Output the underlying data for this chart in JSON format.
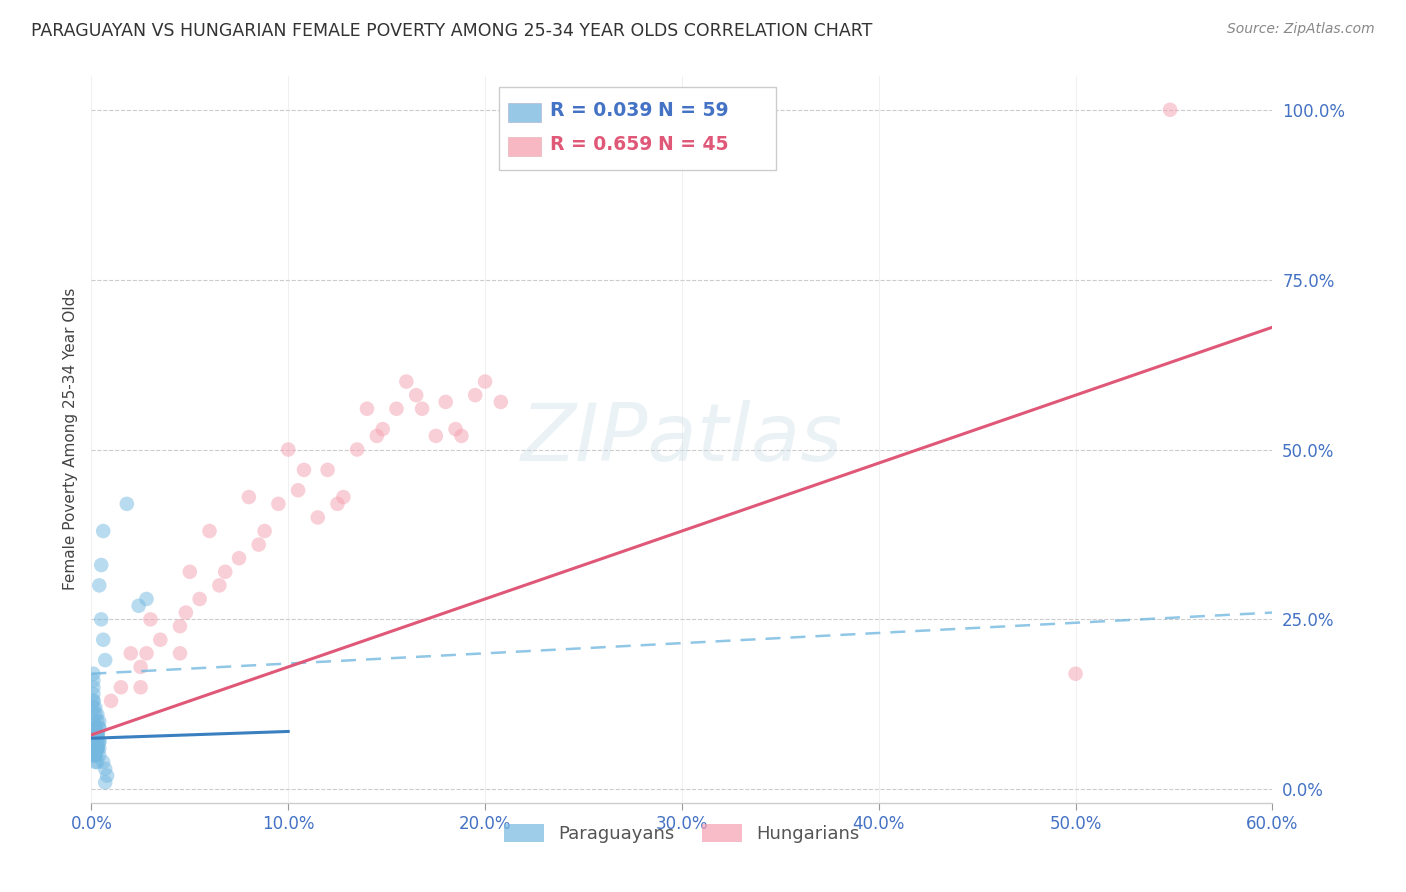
{
  "title": "PARAGUAYAN VS HUNGARIAN FEMALE POVERTY AMONG 25-34 YEAR OLDS CORRELATION CHART",
  "source": "Source: ZipAtlas.com",
  "ylabel": "Female Poverty Among 25-34 Year Olds",
  "legend_line1": "R = 0.039   N = 59",
  "legend_line2": "R = 0.659   N = 45",
  "legend_line1_r": "R = 0.039",
  "legend_line1_n": "N = 59",
  "legend_line2_r": "R = 0.659",
  "legend_line2_n": "N = 45",
  "xlim": [
    0.0,
    0.6
  ],
  "ylim": [
    -0.02,
    1.05
  ],
  "xticks": [
    0.0,
    0.1,
    0.2,
    0.3,
    0.4,
    0.5,
    0.6
  ],
  "yticks": [
    0.0,
    0.25,
    0.5,
    0.75,
    1.0
  ],
  "ytick_labels": [
    "0.0%",
    "25.0%",
    "50.0%",
    "75.0%",
    "100.0%"
  ],
  "xtick_labels": [
    "0.0%",
    "10.0%",
    "20.0%",
    "30.0%",
    "40.0%",
    "50.0%",
    "60.0%"
  ],
  "color_paraguayan": "#74b8e0",
  "color_hungarian": "#f5a0b0",
  "color_trend_paraguayan_solid": "#3a80c0",
  "color_trend_paraguayan_dash": "#74b8e0",
  "color_trend_hungarian": "#e05878",
  "background_color": "#ffffff",
  "par_x": [
    0.002,
    0.003,
    0.001,
    0.002,
    0.003,
    0.004,
    0.001,
    0.002,
    0.003,
    0.001,
    0.002,
    0.003,
    0.004,
    0.002,
    0.001,
    0.003,
    0.002,
    0.004,
    0.003,
    0.002,
    0.001,
    0.002,
    0.003,
    0.001,
    0.002,
    0.004,
    0.003,
    0.002,
    0.001,
    0.003,
    0.002,
    0.004,
    0.003,
    0.001,
    0.002,
    0.003,
    0.004,
    0.002,
    0.001,
    0.003,
    0.002,
    0.003,
    0.004,
    0.001,
    0.002,
    0.003,
    0.024,
    0.028,
    0.018,
    0.006,
    0.007,
    0.008,
    0.005,
    0.006,
    0.007,
    0.004,
    0.005,
    0.006,
    0.007
  ],
  "par_y": [
    0.05,
    0.04,
    0.06,
    0.07,
    0.08,
    0.09,
    0.1,
    0.11,
    0.06,
    0.05,
    0.12,
    0.08,
    0.07,
    0.09,
    0.13,
    0.06,
    0.08,
    0.05,
    0.1,
    0.07,
    0.15,
    0.09,
    0.06,
    0.14,
    0.08,
    0.07,
    0.11,
    0.06,
    0.16,
    0.08,
    0.05,
    0.09,
    0.07,
    0.12,
    0.06,
    0.08,
    0.1,
    0.04,
    0.13,
    0.07,
    0.05,
    0.08,
    0.06,
    0.17,
    0.09,
    0.06,
    0.27,
    0.28,
    0.42,
    0.04,
    0.03,
    0.02,
    0.25,
    0.22,
    0.19,
    0.3,
    0.33,
    0.38,
    0.01
  ],
  "hun_x": [
    0.02,
    0.03,
    0.05,
    0.06,
    0.08,
    0.1,
    0.12,
    0.14,
    0.16,
    0.18,
    0.025,
    0.045,
    0.065,
    0.085,
    0.105,
    0.125,
    0.145,
    0.165,
    0.185,
    0.2,
    0.015,
    0.035,
    0.055,
    0.075,
    0.095,
    0.115,
    0.135,
    0.155,
    0.175,
    0.195,
    0.01,
    0.028,
    0.048,
    0.068,
    0.088,
    0.108,
    0.128,
    0.148,
    0.168,
    0.188,
    0.208,
    0.025,
    0.045,
    0.5,
    0.548
  ],
  "hun_y": [
    0.2,
    0.25,
    0.32,
    0.38,
    0.43,
    0.5,
    0.47,
    0.56,
    0.6,
    0.57,
    0.18,
    0.24,
    0.3,
    0.36,
    0.44,
    0.42,
    0.52,
    0.58,
    0.53,
    0.6,
    0.15,
    0.22,
    0.28,
    0.34,
    0.42,
    0.4,
    0.5,
    0.56,
    0.52,
    0.58,
    0.13,
    0.2,
    0.26,
    0.32,
    0.38,
    0.47,
    0.43,
    0.53,
    0.56,
    0.52,
    0.57,
    0.15,
    0.2,
    0.17,
    1.0
  ],
  "trend_par_solid_x0": 0.0,
  "trend_par_solid_x1": 0.1,
  "trend_par_solid_y0": 0.075,
  "trend_par_solid_y1": 0.085,
  "trend_par_dash_x0": 0.0,
  "trend_par_dash_x1": 0.6,
  "trend_par_dash_y0": 0.17,
  "trend_par_dash_y1": 0.26,
  "trend_hun_x0": 0.0,
  "trend_hun_x1": 0.6,
  "trend_hun_y0": 0.08,
  "trend_hun_y1": 0.68
}
